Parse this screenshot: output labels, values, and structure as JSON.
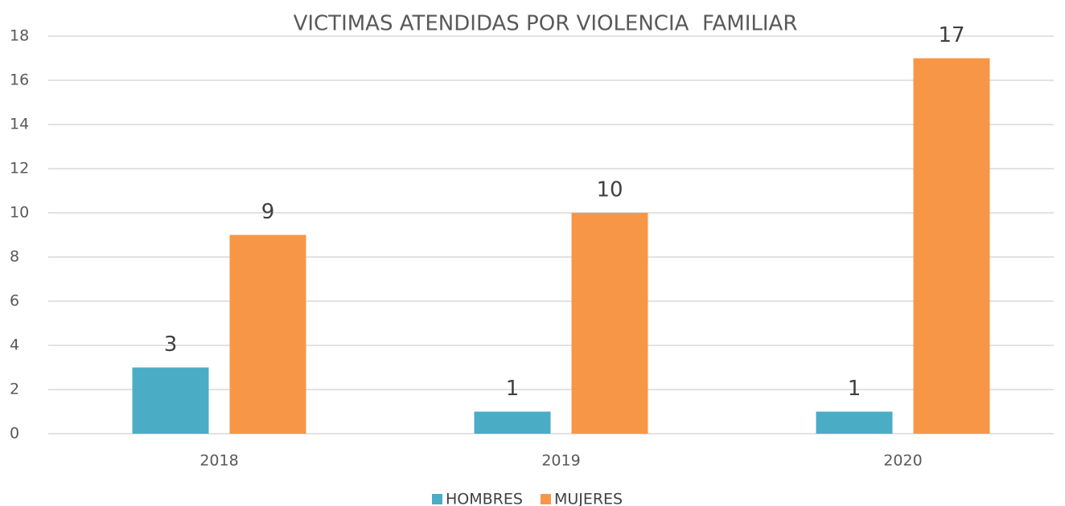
{
  "chart_data": {
    "type": "bar",
    "title": "VICTIMAS ATENDIDAS POR VIOLENCIA  FAMILIAR",
    "categories": [
      "2018",
      "2019",
      "2020"
    ],
    "series": [
      {
        "name": "HOMBRES",
        "color": "#4bacc6",
        "values": [
          3,
          1,
          1
        ]
      },
      {
        "name": "MUJERES",
        "color": "#f79646",
        "values": [
          9,
          10,
          17
        ]
      }
    ],
    "ylim": [
      0,
      18
    ],
    "yticks": [
      0,
      2,
      4,
      6,
      8,
      10,
      12,
      14,
      16,
      18
    ],
    "grid": true,
    "legend": "bottom"
  }
}
